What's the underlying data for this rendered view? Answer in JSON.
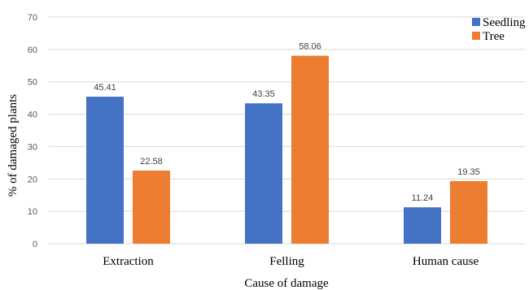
{
  "chart_data": {
    "type": "bar",
    "title": "",
    "xlabel": "Cause of damage",
    "ylabel": "% of damaged plants",
    "categories": [
      "Extraction",
      "Felling",
      "Human cause"
    ],
    "series": [
      {
        "name": "Seedling",
        "color": "#4472c4",
        "values": [
          45.41,
          43.35,
          11.24
        ],
        "labels": [
          "45.41",
          "43.35",
          "11.24"
        ]
      },
      {
        "name": "Tree",
        "color": "#ed7d31",
        "values": [
          22.58,
          58.06,
          19.35
        ],
        "labels": [
          "22.58",
          "58.06",
          "19.35"
        ]
      }
    ],
    "ylim": [
      0,
      70
    ],
    "yticks": [
      0,
      10,
      20,
      30,
      40,
      50,
      60,
      70
    ],
    "grid": true,
    "legend_position": "top-right"
  }
}
